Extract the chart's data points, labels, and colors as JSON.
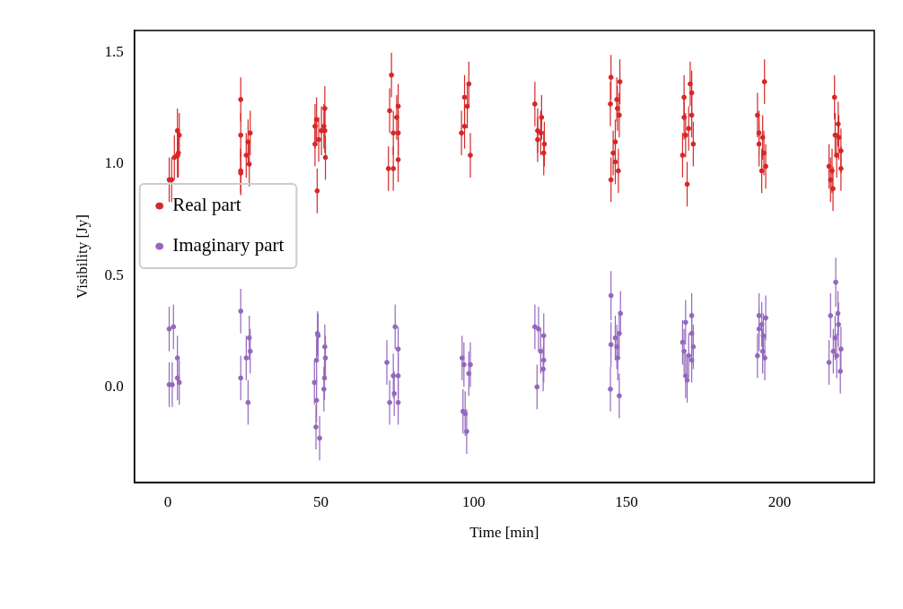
{
  "chart_data": {
    "type": "scatter",
    "xlabel": "Time [min]",
    "ylabel": "Visibility [Jy]",
    "xlim": [
      -11,
      231
    ],
    "ylim": [
      -0.43,
      1.6
    ],
    "xticks": [
      0,
      50,
      100,
      150,
      200
    ],
    "yticks": [
      {
        "value": 0,
        "label": "0.0"
      },
      {
        "value": 0.5,
        "label": "0.5"
      },
      {
        "value": 1,
        "label": "1.0"
      },
      {
        "value": 1.5,
        "label": "1.5"
      }
    ],
    "grid": false,
    "legend": "center left",
    "marker": "circle",
    "series": [
      {
        "name": "Real part",
        "color": "#d62728",
        "x": [
          0.4,
          1.2,
          2.1,
          3.1,
          3.1,
          3.7,
          3.4,
          23.8,
          23.8,
          26.9,
          26.2,
          25.6,
          23.8,
          23.8,
          26.6,
          51.3,
          48.1,
          51.0,
          51.3,
          48.6,
          48.1,
          51.5,
          48.8,
          50.2,
          49.3,
          73.1,
          72.5,
          75.3,
          74.8,
          75.3,
          73.7,
          75.3,
          72.1,
          73.7,
          98.4,
          97.0,
          97.9,
          96.0,
          98.9,
          97.0,
          120.0,
          122.2,
          120.9,
          123.1,
          122.9,
          120.9,
          121.9,
          144.9,
          147.8,
          144.7,
          146.8,
          147.0,
          147.6,
          146.3,
          145.6,
          147.3,
          144.9,
          146.3,
          170.8,
          171.3,
          168.8,
          171.3,
          168.8,
          171.8,
          168.3,
          169.8,
          170.3,
          169.3,
          195.1,
          192.8,
          193.3,
          194.5,
          193.3,
          194.9,
          195.5,
          194.2,
          218.0,
          219.2,
          218.2,
          219.4,
          220.1,
          216.2,
          220.1,
          216.7,
          217.5,
          218.7,
          217.2
        ],
        "values": [
          0.93,
          0.93,
          1.03,
          1.04,
          1.15,
          1.13,
          1.05,
          1.29,
          1.13,
          1.14,
          1.1,
          1.04,
          0.97,
          0.96,
          1.0,
          1.25,
          1.17,
          1.17,
          1.15,
          1.2,
          1.09,
          1.03,
          0.88,
          1.15,
          1.11,
          1.4,
          1.24,
          1.26,
          1.21,
          1.14,
          1.14,
          1.02,
          0.98,
          0.98,
          1.36,
          1.3,
          1.26,
          1.14,
          1.04,
          1.17,
          1.27,
          1.21,
          1.11,
          1.09,
          1.05,
          1.15,
          1.14,
          1.39,
          1.37,
          1.27,
          1.29,
          1.25,
          1.22,
          1.1,
          1.05,
          0.97,
          0.93,
          1.01,
          1.36,
          1.32,
          1.3,
          1.22,
          1.21,
          1.09,
          1.04,
          0.91,
          1.16,
          1.13,
          1.37,
          1.22,
          1.14,
          1.12,
          1.09,
          1.05,
          0.99,
          0.97,
          1.3,
          1.18,
          1.13,
          1.12,
          1.06,
          0.99,
          0.98,
          0.93,
          0.89,
          1.04,
          0.97
        ],
        "errors": [
          0.1,
          0.1,
          0.1,
          0.1,
          0.1,
          0.1,
          0.11,
          0.1,
          0.1,
          0.1,
          0.1,
          0.1,
          0.1,
          0.1,
          0.1,
          0.1,
          0.1,
          0.1,
          0.1,
          0.1,
          0.1,
          0.1,
          0.1,
          0.11,
          0.1,
          0.1,
          0.1,
          0.1,
          0.1,
          0.1,
          0.1,
          0.1,
          0.1,
          0.1,
          0.1,
          0.1,
          0.1,
          0.1,
          0.1,
          0.1,
          0.1,
          0.1,
          0.1,
          0.1,
          0.1,
          0.1,
          0.1,
          0.1,
          0.1,
          0.1,
          0.1,
          0.1,
          0.1,
          0.1,
          0.1,
          0.1,
          0.1,
          0.1,
          0.1,
          0.1,
          0.1,
          0.1,
          0.1,
          0.1,
          0.1,
          0.1,
          0.1,
          0.1,
          0.1,
          0.1,
          0.1,
          0.1,
          0.1,
          0.1,
          0.1,
          0.1,
          0.1,
          0.1,
          0.1,
          0.1,
          0.1,
          0.1,
          0.1,
          0.1,
          0.1,
          0.1,
          0.1
        ]
      },
      {
        "name": "Imaginary part",
        "color": "#9467bd",
        "x": [
          0.4,
          1.8,
          3.1,
          3.1,
          3.7,
          0.4,
          1.4,
          23.8,
          26.6,
          26.9,
          25.6,
          23.8,
          26.2,
          48.9,
          49.1,
          51.3,
          51.5,
          51.2,
          51.0,
          47.9,
          48.6,
          48.4,
          49.6,
          48.6,
          74.3,
          75.3,
          71.6,
          75.3,
          73.7,
          72.5,
          75.3,
          74.0,
          96.2,
          98.9,
          98.4,
          96.5,
          97.2,
          97.7,
          96.8,
          120.0,
          121.2,
          122.9,
          122.9,
          122.7,
          120.7,
          121.9,
          144.9,
          148.0,
          147.6,
          144.9,
          146.8,
          147.1,
          144.7,
          147.6,
          146.3,
          171.3,
          169.3,
          171.3,
          168.3,
          171.8,
          171.3,
          169.3,
          169.8,
          170.3,
          168.8,
          193.3,
          195.5,
          193.3,
          194.7,
          192.8,
          195.2,
          194.5,
          194.2,
          218.4,
          216.7,
          219.1,
          219.3,
          218.2,
          220.1,
          216.2,
          219.9,
          217.6,
          218.7
        ],
        "values": [
          0.26,
          0.27,
          0.13,
          0.04,
          0.02,
          0.01,
          0.01,
          0.34,
          0.22,
          0.16,
          0.13,
          0.04,
          -0.07,
          0.24,
          0.23,
          0.18,
          0.13,
          0.04,
          -0.01,
          0.02,
          -0.06,
          -0.18,
          -0.23,
          0.12,
          0.27,
          0.17,
          0.11,
          0.05,
          0.05,
          -0.07,
          -0.07,
          -0.03,
          0.13,
          0.1,
          0.06,
          -0.11,
          -0.12,
          -0.2,
          0.1,
          0.27,
          0.26,
          0.23,
          0.12,
          0.08,
          0.0,
          0.16,
          0.41,
          0.33,
          0.24,
          0.19,
          0.18,
          0.13,
          -0.01,
          -0.04,
          0.22,
          0.32,
          0.29,
          0.24,
          0.2,
          0.18,
          0.12,
          0.05,
          0.03,
          0.14,
          0.16,
          0.32,
          0.31,
          0.26,
          0.23,
          0.14,
          0.13,
          0.16,
          0.28,
          0.47,
          0.32,
          0.33,
          0.28,
          0.22,
          0.17,
          0.11,
          0.07,
          0.16,
          0.14
        ],
        "errors": [
          0.1,
          0.1,
          0.1,
          0.1,
          0.1,
          0.1,
          0.1,
          0.1,
          0.1,
          0.1,
          0.1,
          0.1,
          0.1,
          0.1,
          0.1,
          0.1,
          0.1,
          0.1,
          0.1,
          0.1,
          0.1,
          0.1,
          0.1,
          0.1,
          0.1,
          0.1,
          0.1,
          0.1,
          0.1,
          0.1,
          0.1,
          0.1,
          0.1,
          0.1,
          0.1,
          0.1,
          0.1,
          0.1,
          0.1,
          0.1,
          0.1,
          0.1,
          0.1,
          0.1,
          0.1,
          0.1,
          0.11,
          0.1,
          0.1,
          0.1,
          0.1,
          0.1,
          0.1,
          0.1,
          0.1,
          0.1,
          0.1,
          0.1,
          0.1,
          0.1,
          0.1,
          0.1,
          0.1,
          0.1,
          0.1,
          0.1,
          0.1,
          0.1,
          0.1,
          0.1,
          0.1,
          0.1,
          0.1,
          0.11,
          0.1,
          0.1,
          0.1,
          0.1,
          0.1,
          0.1,
          0.1,
          0.1,
          0.1
        ]
      }
    ]
  }
}
